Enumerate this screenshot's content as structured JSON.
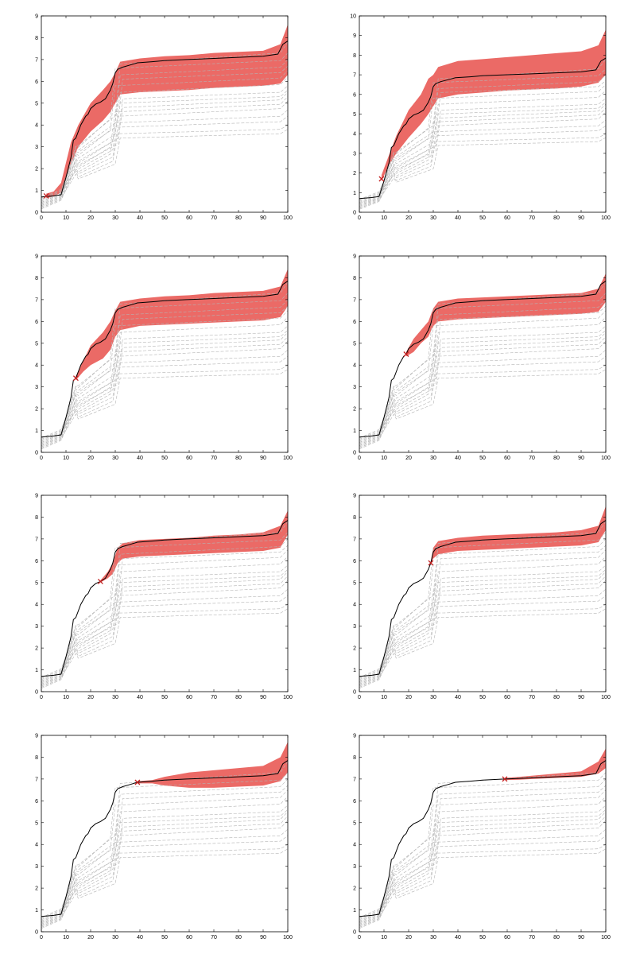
{
  "colors": {
    "band": "#eb6a66",
    "main_line": "#000000",
    "ensemble_line": "#b4b4b4",
    "marker": "#c42020",
    "axes": "#000000"
  },
  "chart_data": [
    {
      "type": "line",
      "title": "",
      "xlabel": "",
      "ylabel": "",
      "xlim": [
        0,
        100
      ],
      "ylim": [
        0,
        9
      ],
      "xticks": [
        "0",
        "10",
        "20",
        "30",
        "40",
        "50",
        "60",
        "70",
        "80",
        "90",
        "100"
      ],
      "yticks": [
        "0",
        "1",
        "2",
        "3",
        "4",
        "5",
        "6",
        "7",
        "8",
        "9"
      ],
      "grid": false,
      "marker_point": [
        2,
        0.75
      ],
      "band_lower": [
        [
          2,
          0.65
        ],
        [
          5,
          0.72
        ],
        [
          8,
          0.9
        ],
        [
          12,
          2.2
        ],
        [
          15,
          3.0
        ],
        [
          20,
          3.7
        ],
        [
          25,
          4.2
        ],
        [
          28,
          4.6
        ],
        [
          30,
          5.0
        ],
        [
          32,
          5.4
        ],
        [
          40,
          5.5
        ],
        [
          50,
          5.55
        ],
        [
          60,
          5.6
        ],
        [
          70,
          5.7
        ],
        [
          80,
          5.75
        ],
        [
          90,
          5.8
        ],
        [
          97,
          5.9
        ],
        [
          100,
          6.3
        ]
      ],
      "band_upper": [
        [
          2,
          0.85
        ],
        [
          5,
          0.95
        ],
        [
          8,
          1.35
        ],
        [
          12,
          3.2
        ],
        [
          15,
          4.0
        ],
        [
          20,
          5.0
        ],
        [
          25,
          5.6
        ],
        [
          28,
          6.0
        ],
        [
          30,
          6.4
        ],
        [
          32,
          6.9
        ],
        [
          40,
          7.05
        ],
        [
          50,
          7.15
        ],
        [
          60,
          7.2
        ],
        [
          70,
          7.3
        ],
        [
          80,
          7.35
        ],
        [
          90,
          7.4
        ],
        [
          97,
          7.7
        ],
        [
          100,
          8.6
        ]
      ]
    },
    {
      "type": "line",
      "title": "",
      "xlabel": "",
      "ylabel": "",
      "xlim": [
        0,
        100
      ],
      "ylim": [
        0,
        10
      ],
      "xticks": [
        "0",
        "10",
        "20",
        "30",
        "40",
        "50",
        "60",
        "70",
        "80",
        "90",
        "100"
      ],
      "yticks": [
        "0",
        "1",
        "2",
        "3",
        "4",
        "5",
        "6",
        "7",
        "8",
        "9",
        "10"
      ],
      "grid": false,
      "marker_point": [
        9,
        1.7
      ],
      "band_lower": [
        [
          9,
          1.6
        ],
        [
          12,
          2.4
        ],
        [
          15,
          3.0
        ],
        [
          20,
          3.8
        ],
        [
          25,
          4.5
        ],
        [
          28,
          5.0
        ],
        [
          30,
          5.4
        ],
        [
          32,
          5.8
        ],
        [
          40,
          6.0
        ],
        [
          50,
          6.1
        ],
        [
          60,
          6.2
        ],
        [
          70,
          6.25
        ],
        [
          80,
          6.3
        ],
        [
          90,
          6.4
        ],
        [
          97,
          6.6
        ],
        [
          100,
          7.0
        ]
      ],
      "band_upper": [
        [
          9,
          1.9
        ],
        [
          12,
          2.9
        ],
        [
          15,
          3.9
        ],
        [
          20,
          5.2
        ],
        [
          25,
          6.0
        ],
        [
          28,
          6.8
        ],
        [
          30,
          7.0
        ],
        [
          32,
          7.4
        ],
        [
          40,
          7.7
        ],
        [
          50,
          7.8
        ],
        [
          60,
          7.9
        ],
        [
          70,
          8.0
        ],
        [
          80,
          8.1
        ],
        [
          90,
          8.2
        ],
        [
          97,
          8.5
        ],
        [
          100,
          9.3
        ]
      ]
    },
    {
      "type": "line",
      "title": "",
      "xlabel": "",
      "ylabel": "",
      "xlim": [
        0,
        100
      ],
      "ylim": [
        0,
        9
      ],
      "xticks": [
        "0",
        "10",
        "20",
        "30",
        "40",
        "50",
        "60",
        "70",
        "80",
        "90",
        "100"
      ],
      "yticks": [
        "0",
        "1",
        "2",
        "3",
        "4",
        "5",
        "6",
        "7",
        "8",
        "9"
      ],
      "grid": false,
      "marker_point": [
        14,
        3.4
      ],
      "band_lower": [
        [
          14,
          3.3
        ],
        [
          17,
          3.7
        ],
        [
          20,
          4.0
        ],
        [
          25,
          4.3
        ],
        [
          28,
          4.7
        ],
        [
          30,
          5.3
        ],
        [
          32,
          5.6
        ],
        [
          40,
          5.8
        ],
        [
          50,
          5.85
        ],
        [
          60,
          5.9
        ],
        [
          70,
          5.95
        ],
        [
          80,
          6.0
        ],
        [
          90,
          6.05
        ],
        [
          97,
          6.2
        ],
        [
          100,
          6.7
        ]
      ],
      "band_upper": [
        [
          14,
          3.5
        ],
        [
          17,
          4.2
        ],
        [
          20,
          4.9
        ],
        [
          25,
          5.5
        ],
        [
          28,
          6.0
        ],
        [
          30,
          6.5
        ],
        [
          32,
          6.9
        ],
        [
          40,
          7.05
        ],
        [
          50,
          7.15
        ],
        [
          60,
          7.2
        ],
        [
          70,
          7.3
        ],
        [
          80,
          7.35
        ],
        [
          90,
          7.4
        ],
        [
          97,
          7.6
        ],
        [
          100,
          8.4
        ]
      ]
    },
    {
      "type": "line",
      "title": "",
      "xlabel": "",
      "ylabel": "",
      "xlim": [
        0,
        100
      ],
      "ylim": [
        0,
        9
      ],
      "xticks": [
        "0",
        "10",
        "20",
        "30",
        "40",
        "50",
        "60",
        "70",
        "80",
        "90",
        "100"
      ],
      "yticks": [
        "0",
        "1",
        "2",
        "3",
        "4",
        "5",
        "6",
        "7",
        "8",
        "9"
      ],
      "grid": false,
      "marker_point": [
        19,
        4.5
      ],
      "band_lower": [
        [
          19,
          4.4
        ],
        [
          22,
          4.6
        ],
        [
          25,
          5.0
        ],
        [
          28,
          5.3
        ],
        [
          30,
          5.8
        ],
        [
          32,
          6.0
        ],
        [
          40,
          6.1
        ],
        [
          50,
          6.15
        ],
        [
          60,
          6.2
        ],
        [
          70,
          6.25
        ],
        [
          80,
          6.3
        ],
        [
          90,
          6.35
        ],
        [
          97,
          6.45
        ],
        [
          100,
          6.9
        ]
      ],
      "band_upper": [
        [
          19,
          4.6
        ],
        [
          22,
          5.2
        ],
        [
          25,
          5.6
        ],
        [
          28,
          6.0
        ],
        [
          30,
          6.6
        ],
        [
          32,
          6.9
        ],
        [
          40,
          7.05
        ],
        [
          50,
          7.1
        ],
        [
          60,
          7.15
        ],
        [
          70,
          7.2
        ],
        [
          80,
          7.25
        ],
        [
          90,
          7.3
        ],
        [
          97,
          7.5
        ],
        [
          100,
          8.2
        ]
      ]
    },
    {
      "type": "line",
      "title": "",
      "xlabel": "",
      "ylabel": "",
      "xlim": [
        0,
        100
      ],
      "ylim": [
        0,
        9
      ],
      "xticks": [
        "0",
        "10",
        "20",
        "30",
        "40",
        "50",
        "60",
        "70",
        "80",
        "90",
        "100"
      ],
      "yticks": [
        "0",
        "1",
        "2",
        "3",
        "4",
        "5",
        "6",
        "7",
        "8",
        "9"
      ],
      "grid": false,
      "marker_point": [
        24,
        5.05
      ],
      "band_lower": [
        [
          24,
          5.0
        ],
        [
          27,
          5.2
        ],
        [
          29,
          5.4
        ],
        [
          31,
          5.9
        ],
        [
          33,
          6.1
        ],
        [
          40,
          6.2
        ],
        [
          50,
          6.25
        ],
        [
          60,
          6.3
        ],
        [
          70,
          6.35
        ],
        [
          80,
          6.4
        ],
        [
          90,
          6.45
        ],
        [
          97,
          6.6
        ],
        [
          100,
          7.2
        ]
      ],
      "band_upper": [
        [
          24,
          5.1
        ],
        [
          27,
          5.5
        ],
        [
          29,
          5.9
        ],
        [
          31,
          6.6
        ],
        [
          33,
          6.8
        ],
        [
          40,
          6.95
        ],
        [
          50,
          7.0
        ],
        [
          60,
          7.05
        ],
        [
          70,
          7.15
        ],
        [
          80,
          7.2
        ],
        [
          90,
          7.3
        ],
        [
          97,
          7.6
        ],
        [
          100,
          8.3
        ]
      ]
    },
    {
      "type": "line",
      "title": "",
      "xlabel": "",
      "ylabel": "",
      "xlim": [
        0,
        100
      ],
      "ylim": [
        0,
        9
      ],
      "xticks": [
        "0",
        "10",
        "20",
        "30",
        "40",
        "50",
        "60",
        "70",
        "80",
        "90",
        "100"
      ],
      "yticks": [
        "0",
        "1",
        "2",
        "3",
        "4",
        "5",
        "6",
        "7",
        "8",
        "9"
      ],
      "grid": false,
      "marker_point": [
        29,
        5.9
      ],
      "band_lower": [
        [
          29,
          5.8
        ],
        [
          30,
          6.1
        ],
        [
          32,
          6.3
        ],
        [
          40,
          6.45
        ],
        [
          50,
          6.5
        ],
        [
          60,
          6.55
        ],
        [
          70,
          6.6
        ],
        [
          80,
          6.65
        ],
        [
          90,
          6.7
        ],
        [
          97,
          6.85
        ],
        [
          100,
          7.4
        ]
      ],
      "band_upper": [
        [
          29,
          6.0
        ],
        [
          30,
          6.6
        ],
        [
          32,
          6.9
        ],
        [
          40,
          7.05
        ],
        [
          50,
          7.15
        ],
        [
          60,
          7.2
        ],
        [
          70,
          7.25
        ],
        [
          80,
          7.3
        ],
        [
          90,
          7.4
        ],
        [
          97,
          7.6
        ],
        [
          100,
          8.5
        ]
      ]
    },
    {
      "type": "line",
      "title": "",
      "xlabel": "",
      "ylabel": "",
      "xlim": [
        0,
        100
      ],
      "ylim": [
        0,
        9
      ],
      "xticks": [
        "0",
        "10",
        "20",
        "30",
        "40",
        "50",
        "60",
        "70",
        "80",
        "90",
        "100"
      ],
      "yticks": [
        "0",
        "1",
        "2",
        "3",
        "4",
        "5",
        "6",
        "7",
        "8",
        "9"
      ],
      "grid": false,
      "marker_point": [
        39,
        6.85
      ],
      "band_lower": [
        [
          39,
          6.8
        ],
        [
          45,
          6.8
        ],
        [
          50,
          6.7
        ],
        [
          55,
          6.65
        ],
        [
          60,
          6.6
        ],
        [
          70,
          6.6
        ],
        [
          80,
          6.65
        ],
        [
          90,
          6.7
        ],
        [
          97,
          6.9
        ],
        [
          100,
          7.3
        ]
      ],
      "band_upper": [
        [
          39,
          6.9
        ],
        [
          45,
          6.95
        ],
        [
          50,
          7.1
        ],
        [
          55,
          7.2
        ],
        [
          60,
          7.3
        ],
        [
          70,
          7.4
        ],
        [
          80,
          7.5
        ],
        [
          90,
          7.6
        ],
        [
          97,
          8.0
        ],
        [
          100,
          8.7
        ]
      ]
    },
    {
      "type": "line",
      "title": "",
      "xlabel": "",
      "ylabel": "",
      "xlim": [
        0,
        100
      ],
      "ylim": [
        0,
        9
      ],
      "xticks": [
        "0",
        "10",
        "20",
        "30",
        "40",
        "50",
        "60",
        "70",
        "80",
        "90",
        "100"
      ],
      "yticks": [
        "0",
        "1",
        "2",
        "3",
        "4",
        "5",
        "6",
        "7",
        "8",
        "9"
      ],
      "grid": false,
      "marker_point": [
        59,
        7.0
      ],
      "band_lower": [
        [
          59,
          6.95
        ],
        [
          65,
          6.97
        ],
        [
          70,
          7.0
        ],
        [
          80,
          7.05
        ],
        [
          90,
          7.1
        ],
        [
          97,
          7.25
        ],
        [
          100,
          7.5
        ]
      ],
      "band_upper": [
        [
          59,
          7.05
        ],
        [
          65,
          7.1
        ],
        [
          70,
          7.15
        ],
        [
          80,
          7.25
        ],
        [
          90,
          7.35
        ],
        [
          97,
          7.8
        ],
        [
          100,
          8.4
        ]
      ]
    }
  ],
  "main_curve": [
    [
      0,
      0.7
    ],
    [
      5,
      0.75
    ],
    [
      8,
      0.8
    ],
    [
      10,
      1.6
    ],
    [
      12,
      2.5
    ],
    [
      13,
      3.3
    ],
    [
      14,
      3.4
    ],
    [
      16,
      4.0
    ],
    [
      18,
      4.4
    ],
    [
      19,
      4.5
    ],
    [
      20,
      4.75
    ],
    [
      22,
      4.95
    ],
    [
      24,
      5.05
    ],
    [
      26,
      5.2
    ],
    [
      28,
      5.6
    ],
    [
      29,
      5.9
    ],
    [
      30,
      6.4
    ],
    [
      31,
      6.55
    ],
    [
      33,
      6.65
    ],
    [
      36,
      6.75
    ],
    [
      39,
      6.85
    ],
    [
      45,
      6.9
    ],
    [
      50,
      6.95
    ],
    [
      59,
      7.0
    ],
    [
      70,
      7.05
    ],
    [
      80,
      7.1
    ],
    [
      90,
      7.15
    ],
    [
      96,
      7.25
    ],
    [
      98,
      7.7
    ],
    [
      100,
      7.85
    ]
  ],
  "ensemble_curves": [
    {
      "start": 0.15,
      "plateau": 4.1,
      "end": 4.7
    },
    {
      "start": 0.2,
      "plateau": 4.4,
      "end": 5.1
    },
    {
      "start": 0.25,
      "plateau": 3.4,
      "end": 3.8
    },
    {
      "start": 0.3,
      "plateau": 5.2,
      "end": 5.8
    },
    {
      "start": 0.35,
      "plateau": 5.8,
      "end": 6.5
    },
    {
      "start": 0.4,
      "plateau": 3.9,
      "end": 4.4
    },
    {
      "start": 0.45,
      "plateau": 6.3,
      "end": 7.0
    },
    {
      "start": 0.5,
      "plateau": 4.8,
      "end": 5.5
    },
    {
      "start": 0.55,
      "plateau": 6.6,
      "end": 7.3
    },
    {
      "start": 0.6,
      "plateau": 3.6,
      "end": 4.0
    },
    {
      "start": 0.65,
      "plateau": 5.5,
      "end": 6.2
    },
    {
      "start": 0.2,
      "plateau": 6.1,
      "end": 6.7
    },
    {
      "start": 0.35,
      "plateau": 4.6,
      "end": 5.3
    },
    {
      "start": 0.45,
      "plateau": 5.0,
      "end": 5.6
    },
    {
      "start": 0.3,
      "plateau": 6.8,
      "end": 7.8
    }
  ]
}
